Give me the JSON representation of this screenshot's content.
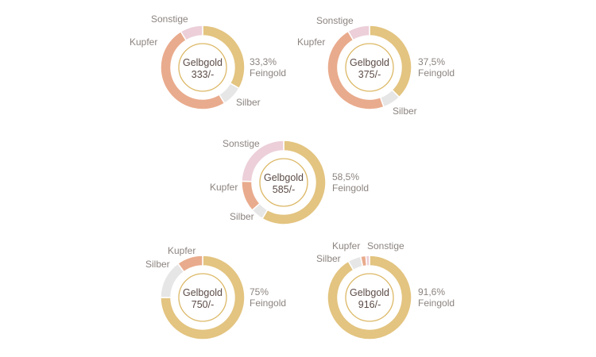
{
  "chart_data": {
    "type": "pie",
    "variant": "donut",
    "colors": {
      "Feingold": "#e3c480",
      "Silber": "#e7e6e6",
      "Kupfer": "#e9ab8d",
      "Sonstige": "#eccfd8",
      "inner_ring": "#dcb866"
    },
    "charts": [
      {
        "title": "Gelbgold",
        "subtitle": "333/-",
        "gold_label": [
          "33,3%",
          "Feingold"
        ],
        "segments": [
          {
            "name": "Feingold",
            "value": 33.3
          },
          {
            "name": "Silber",
            "value": 8
          },
          {
            "name": "Kupfer",
            "value": 50
          },
          {
            "name": "Sonstige",
            "value": 8.7
          }
        ],
        "labels": [
          "Silber",
          "Kupfer",
          "Sonstige"
        ]
      },
      {
        "title": "Gelbgold",
        "subtitle": "375/-",
        "gold_label": [
          "37,5%",
          "Feingold"
        ],
        "segments": [
          {
            "name": "Feingold",
            "value": 37.5
          },
          {
            "name": "Silber",
            "value": 7
          },
          {
            "name": "Kupfer",
            "value": 47
          },
          {
            "name": "Sonstige",
            "value": 8.5
          }
        ],
        "labels": [
          "Silber",
          "Kupfer",
          "Sonstige"
        ]
      },
      {
        "title": "Gelbgold",
        "subtitle": "585/-",
        "gold_label": [
          "58,5%",
          "Feingold"
        ],
        "segments": [
          {
            "name": "Feingold",
            "value": 58.5
          },
          {
            "name": "Silber",
            "value": 5
          },
          {
            "name": "Kupfer",
            "value": 12
          },
          {
            "name": "Sonstige",
            "value": 24.5
          }
        ],
        "labels": [
          "Silber",
          "Kupfer",
          "Sonstige"
        ]
      },
      {
        "title": "Gelbgold",
        "subtitle": "750/-",
        "gold_label": [
          "75%",
          "Feingold"
        ],
        "segments": [
          {
            "name": "Feingold",
            "value": 75
          },
          {
            "name": "Silber",
            "value": 15
          },
          {
            "name": "Kupfer",
            "value": 10
          }
        ],
        "labels": [
          "Silber",
          "Kupfer"
        ]
      },
      {
        "title": "Gelbgold",
        "subtitle": "916/-",
        "gold_label": [
          "91,6%",
          "Feingold"
        ],
        "segments": [
          {
            "name": "Feingold",
            "value": 91.6
          },
          {
            "name": "Silber",
            "value": 5
          },
          {
            "name": "Kupfer",
            "value": 2
          },
          {
            "name": "Sonstige",
            "value": 1.4
          }
        ],
        "labels": [
          "Silber",
          "Kupfer",
          "Sonstige"
        ]
      }
    ]
  }
}
